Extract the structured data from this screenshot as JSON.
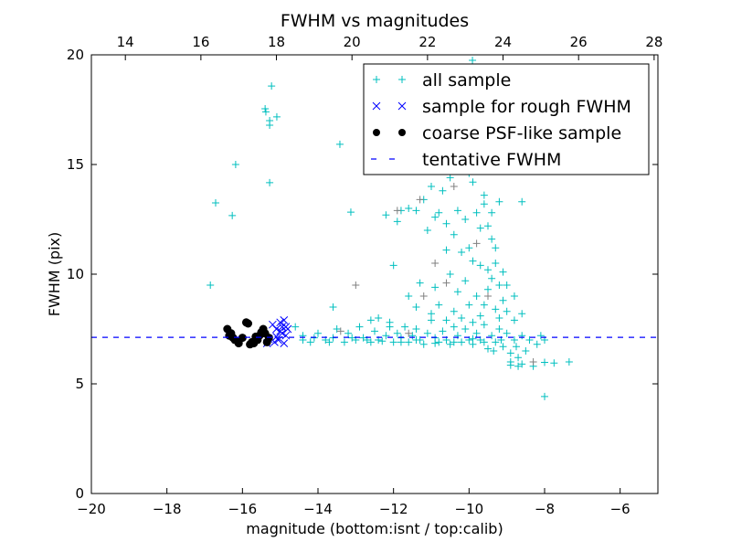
{
  "chart_data": {
    "type": "scatter",
    "title": "FWHM vs magnitudes",
    "xlabel": "magnitude (bottom:isnt / top:calib)",
    "ylabel": "FWHM (pix)",
    "xlim": [
      -20,
      -5
    ],
    "ylim": [
      0,
      20
    ],
    "top_axis": {
      "offset": 33.1,
      "ticks": [
        14,
        16,
        18,
        20,
        22,
        24,
        26,
        28
      ]
    },
    "xticks": [
      -20,
      -18,
      -16,
      -14,
      -12,
      -10,
      -8,
      -6
    ],
    "xtick_labels": [
      "−20",
      "−18",
      "−16",
      "−14",
      "−12",
      "−10",
      "−8",
      "−6"
    ],
    "yticks": [
      0,
      5,
      10,
      15,
      20
    ],
    "grid": false,
    "legend_placement": "top-right",
    "colors": {
      "all": "#00bfbf",
      "gray": "#808080",
      "rough": "#0000ff",
      "coarse": "#000000",
      "tentative": "#0000ff"
    },
    "legend": [
      "all sample",
      "sample for rough FWHM",
      "coarse PSF-like sample",
      "tentative FWHM"
    ],
    "tentative_fwhm": 7.12,
    "series": [
      {
        "name": "all sample",
        "marker": "+",
        "points": [
          [
            -15.23,
            18.58
          ],
          [
            -15.4,
            17.54
          ],
          [
            -15.38,
            17.4
          ],
          [
            -15.09,
            17.17
          ],
          [
            -15.28,
            17.0
          ],
          [
            -15.28,
            16.79
          ],
          [
            -15.28,
            14.17
          ],
          [
            -16.18,
            15.0
          ],
          [
            -16.71,
            13.25
          ],
          [
            -16.27,
            12.67
          ],
          [
            -16.85,
            9.5
          ],
          [
            -13.42,
            15.92
          ],
          [
            -13.13,
            12.83
          ],
          [
            -9.91,
            19.75
          ],
          [
            -7.35,
            6.0
          ],
          [
            -8.0,
            5.98
          ],
          [
            -7.75,
            5.95
          ],
          [
            -8.0,
            4.42
          ],
          [
            -8.9,
            5.85
          ],
          [
            -8.7,
            5.8
          ],
          [
            -14.6,
            7.6
          ],
          [
            -14.4,
            7.2
          ],
          [
            -14.2,
            6.9
          ],
          [
            -14.0,
            7.3
          ],
          [
            -13.8,
            7.0
          ],
          [
            -13.6,
            7.1
          ],
          [
            -13.5,
            7.5
          ],
          [
            -13.3,
            6.9
          ],
          [
            -13.2,
            7.3
          ],
          [
            -13.0,
            7.0
          ],
          [
            -12.9,
            7.6
          ],
          [
            -12.8,
            7.1
          ],
          [
            -12.6,
            6.9
          ],
          [
            -12.5,
            7.4
          ],
          [
            -12.4,
            7.0
          ],
          [
            -12.2,
            7.2
          ],
          [
            -12.1,
            7.8
          ],
          [
            -12.0,
            6.9
          ],
          [
            -11.9,
            7.3
          ],
          [
            -11.8,
            7.1
          ],
          [
            -11.7,
            7.6
          ],
          [
            -11.6,
            6.9
          ],
          [
            -11.5,
            7.2
          ],
          [
            -11.4,
            7.5
          ],
          [
            -11.3,
            7.0
          ],
          [
            -11.2,
            6.8
          ],
          [
            -11.1,
            7.3
          ],
          [
            -11.0,
            7.9
          ],
          [
            -10.9,
            7.1
          ],
          [
            -10.8,
            6.9
          ],
          [
            -10.7,
            7.4
          ],
          [
            -10.6,
            7.0
          ],
          [
            -10.5,
            6.8
          ],
          [
            -10.4,
            7.6
          ],
          [
            -10.3,
            7.2
          ],
          [
            -10.2,
            6.9
          ],
          [
            -10.1,
            7.5
          ],
          [
            -10.0,
            7.0
          ],
          [
            -9.9,
            6.8
          ],
          [
            -9.8,
            7.3
          ],
          [
            -9.7,
            7.0
          ],
          [
            -9.6,
            7.7
          ],
          [
            -9.5,
            6.6
          ],
          [
            -9.4,
            7.2
          ],
          [
            -9.3,
            6.9
          ],
          [
            -9.2,
            7.5
          ],
          [
            -9.1,
            6.7
          ],
          [
            -9.0,
            7.3
          ],
          [
            -8.9,
            6.4
          ],
          [
            -8.8,
            7.0
          ],
          [
            -8.7,
            6.2
          ],
          [
            -8.6,
            7.2
          ],
          [
            -8.5,
            6.5
          ],
          [
            -8.4,
            7.0
          ],
          [
            -8.3,
            5.8
          ],
          [
            -8.6,
            5.9
          ],
          [
            -8.9,
            6.0
          ],
          [
            -8.2,
            6.8
          ],
          [
            -8.1,
            7.2
          ],
          [
            -8.0,
            7.0
          ],
          [
            -14.4,
            7.0
          ],
          [
            -14.1,
            7.1
          ],
          [
            -13.7,
            6.9
          ],
          [
            -13.1,
            7.1
          ],
          [
            -12.7,
            7.0
          ],
          [
            -12.3,
            6.95
          ],
          [
            -11.8,
            6.9
          ],
          [
            -11.4,
            7.0
          ],
          [
            -10.9,
            6.85
          ],
          [
            -10.4,
            6.9
          ],
          [
            -9.9,
            7.05
          ],
          [
            -9.6,
            6.9
          ],
          [
            -9.35,
            6.5
          ],
          [
            -9.15,
            7.0
          ],
          [
            -8.75,
            6.7
          ],
          [
            -11.8,
            12.9
          ],
          [
            -11.6,
            13.0
          ],
          [
            -11.2,
            13.4
          ],
          [
            -11.0,
            14.0
          ],
          [
            -10.7,
            13.8
          ],
          [
            -10.5,
            14.4
          ],
          [
            -10.2,
            14.9
          ],
          [
            -10.0,
            14.6
          ],
          [
            -9.9,
            14.2
          ],
          [
            -9.6,
            13.6
          ],
          [
            -12.2,
            12.7
          ],
          [
            -11.9,
            12.4
          ],
          [
            -11.4,
            12.9
          ],
          [
            -11.1,
            12.0
          ],
          [
            -10.9,
            12.6
          ],
          [
            -10.8,
            12.8
          ],
          [
            -10.6,
            12.3
          ],
          [
            -10.3,
            12.9
          ],
          [
            -10.1,
            12.5
          ],
          [
            -9.8,
            12.8
          ],
          [
            -9.7,
            12.1
          ],
          [
            -9.5,
            12.2
          ],
          [
            -9.4,
            11.6
          ],
          [
            -9.3,
            11.2
          ],
          [
            -10.4,
            11.8
          ],
          [
            -10.2,
            11.0
          ],
          [
            -10.0,
            11.2
          ],
          [
            -9.9,
            10.6
          ],
          [
            -9.7,
            10.4
          ],
          [
            -9.5,
            10.2
          ],
          [
            -9.4,
            9.8
          ],
          [
            -9.3,
            10.5
          ],
          [
            -9.2,
            9.5
          ],
          [
            -9.1,
            8.8
          ],
          [
            -10.5,
            10.0
          ],
          [
            -10.3,
            9.2
          ],
          [
            -10.1,
            9.7
          ],
          [
            -9.8,
            9.0
          ],
          [
            -9.6,
            8.6
          ],
          [
            -9.5,
            9.3
          ],
          [
            -9.3,
            8.4
          ],
          [
            -9.2,
            8.0
          ],
          [
            -9.0,
            8.3
          ],
          [
            -8.8,
            7.9
          ],
          [
            -8.6,
            8.2
          ],
          [
            -11.3,
            9.6
          ],
          [
            -11.6,
            9.0
          ],
          [
            -12.0,
            10.4
          ],
          [
            -11.4,
            8.5
          ],
          [
            -11.0,
            8.2
          ],
          [
            -10.8,
            8.6
          ],
          [
            -10.6,
            7.9
          ],
          [
            -10.4,
            8.3
          ],
          [
            -10.2,
            8.0
          ],
          [
            -10.0,
            8.6
          ],
          [
            -9.9,
            7.8
          ],
          [
            -9.7,
            8.1
          ],
          [
            -12.4,
            8.0
          ],
          [
            -12.6,
            7.9
          ],
          [
            -13.6,
            8.5
          ],
          [
            -12.1,
            7.6
          ],
          [
            -10.9,
            9.4
          ],
          [
            -10.6,
            11.1
          ],
          [
            -9.6,
            13.2
          ],
          [
            -9.4,
            12.8
          ],
          [
            -9.1,
            10.1
          ],
          [
            -9.0,
            9.5
          ],
          [
            -8.8,
            9.0
          ],
          [
            -9.2,
            13.3
          ],
          [
            -8.6,
            13.3
          ]
        ]
      },
      {
        "name": "all sample (faint)",
        "marker": "+",
        "points": [
          [
            -13.0,
            9.5
          ],
          [
            -11.9,
            12.9
          ],
          [
            -11.3,
            13.4
          ],
          [
            -10.4,
            14.0
          ],
          [
            -11.2,
            9.0
          ],
          [
            -10.9,
            10.5
          ],
          [
            -9.8,
            11.4
          ],
          [
            -10.6,
            9.6
          ],
          [
            -13.4,
            7.4
          ],
          [
            -8.3,
            6.0
          ],
          [
            -11.6,
            7.3
          ],
          [
            -9.5,
            9.0
          ]
        ]
      },
      {
        "name": "sample for rough FWHM",
        "marker": "x",
        "points": [
          [
            -15.2,
            7.7
          ],
          [
            -15.1,
            7.5
          ],
          [
            -15.0,
            7.8
          ],
          [
            -14.9,
            7.9
          ],
          [
            -14.95,
            7.3
          ],
          [
            -15.05,
            7.0
          ],
          [
            -14.85,
            7.2
          ],
          [
            -15.15,
            6.9
          ],
          [
            -14.9,
            6.85
          ],
          [
            -15.0,
            7.4
          ],
          [
            -14.8,
            7.5
          ],
          [
            -15.3,
            7.05
          ],
          [
            -14.85,
            7.6
          ],
          [
            -15.1,
            7.15
          ],
          [
            -15.35,
            6.85
          ],
          [
            -14.95,
            7.6
          ]
        ]
      },
      {
        "name": "coarse PSF-like sample",
        "marker": "o",
        "points": [
          [
            -16.4,
            7.5
          ],
          [
            -16.35,
            7.2
          ],
          [
            -16.3,
            7.3
          ],
          [
            -16.2,
            7.0
          ],
          [
            -16.1,
            6.85
          ],
          [
            -15.9,
            7.8
          ],
          [
            -15.85,
            7.75
          ],
          [
            -15.8,
            6.8
          ],
          [
            -15.7,
            6.85
          ],
          [
            -15.6,
            7.0
          ],
          [
            -15.55,
            7.2
          ],
          [
            -15.45,
            7.5
          ],
          [
            -15.4,
            7.3
          ],
          [
            -15.35,
            6.9
          ],
          [
            -15.3,
            7.1
          ],
          [
            -15.5,
            7.35
          ],
          [
            -16.0,
            7.1
          ],
          [
            -15.75,
            6.9
          ],
          [
            -16.25,
            7.1
          ],
          [
            -15.65,
            7.15
          ]
        ]
      }
    ]
  }
}
